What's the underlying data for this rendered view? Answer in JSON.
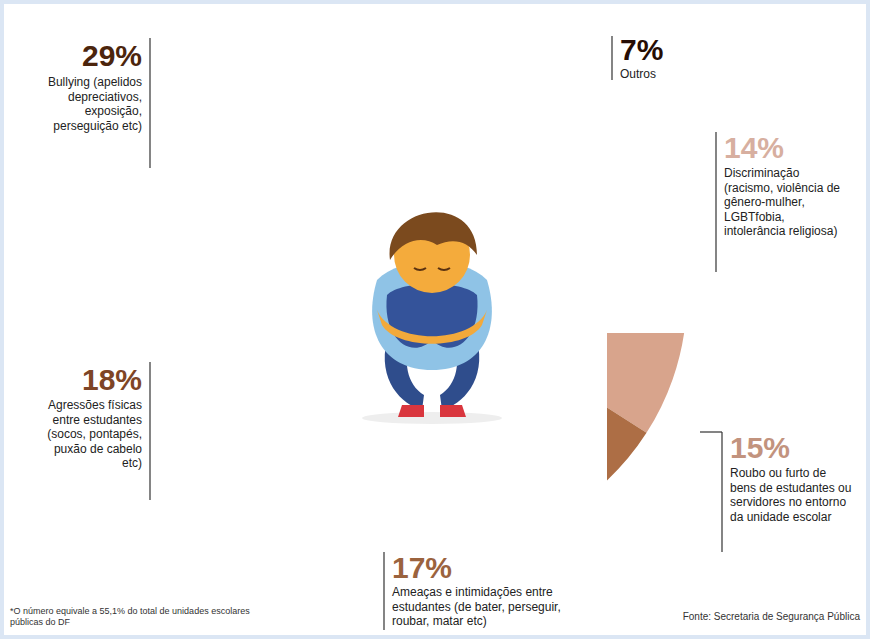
{
  "chart_data": {
    "type": "donut",
    "categories": [
      "Outros",
      "Discriminação (racismo, violência de gênero-mulher, LGBTfobia, intolerância religiosa)",
      "Roubo ou furto de bens de estudantes ou servidores no entorno da unidade escolar",
      "Ameaças e intimidações entre estudantes (de bater, perseguir, roubar, matar etc)",
      "Agressões físicas entre estudantes (socos, pontapés, puxão de cabelo etc)",
      "Bullying (apelidos depreciativos, exposição, perseguição etc)"
    ],
    "values": [
      7,
      14,
      15,
      17,
      18,
      29
    ],
    "value_labels": [
      "7%",
      "14%",
      "15%",
      "17%",
      "18%",
      "29%"
    ],
    "colors": [
      "#2b0e04",
      "#efc3b2",
      "#d8a48c",
      "#ad6e45",
      "#8c4d2a",
      "#55290f"
    ],
    "data_labels": true,
    "footnote": "*O número equivale a 55,1% do total de unidades escolares públicas do DF",
    "source": "Fonte: Secretaria de Segurança Pública"
  }
}
